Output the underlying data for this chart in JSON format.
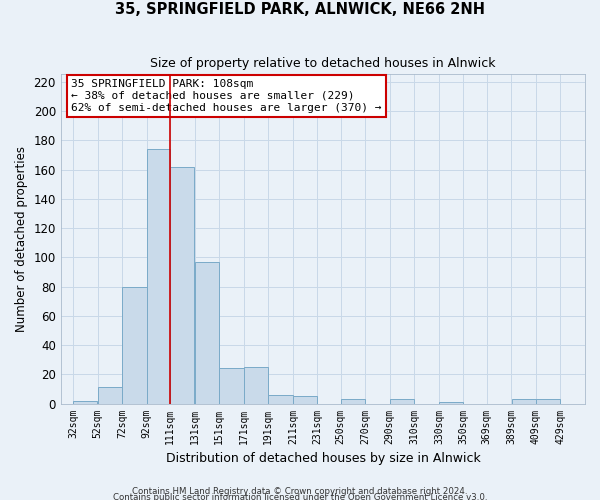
{
  "title": "35, SPRINGFIELD PARK, ALNWICK, NE66 2NH",
  "subtitle": "Size of property relative to detached houses in Alnwick",
  "xlabel": "Distribution of detached houses by size in Alnwick",
  "ylabel": "Number of detached properties",
  "bar_left_edges": [
    32,
    52,
    72,
    92,
    111,
    131,
    151,
    171,
    191,
    211,
    231,
    250,
    270,
    290,
    310,
    330,
    350,
    369,
    389,
    409
  ],
  "bar_widths": [
    20,
    20,
    20,
    19,
    20,
    20,
    20,
    20,
    20,
    20,
    19,
    20,
    20,
    20,
    20,
    20,
    19,
    20,
    20,
    20
  ],
  "bar_heights": [
    2,
    11,
    80,
    174,
    162,
    97,
    24,
    25,
    6,
    5,
    0,
    3,
    0,
    3,
    0,
    1,
    0,
    0,
    3,
    3
  ],
  "bar_color": "#c9daea",
  "bar_edge_color": "#7aaac8",
  "x_tick_labels": [
    "32sqm",
    "52sqm",
    "72sqm",
    "92sqm",
    "111sqm",
    "131sqm",
    "151sqm",
    "171sqm",
    "191sqm",
    "211sqm",
    "231sqm",
    "250sqm",
    "270sqm",
    "290sqm",
    "310sqm",
    "330sqm",
    "350sqm",
    "369sqm",
    "389sqm",
    "409sqm",
    "429sqm"
  ],
  "x_tick_positions": [
    32,
    52,
    72,
    92,
    111,
    131,
    151,
    171,
    191,
    211,
    231,
    250,
    270,
    290,
    310,
    330,
    350,
    369,
    389,
    409,
    429
  ],
  "ylim": [
    0,
    225
  ],
  "yticks": [
    0,
    20,
    40,
    60,
    80,
    100,
    120,
    140,
    160,
    180,
    200,
    220
  ],
  "vline_x": 111,
  "vline_color": "#cc0000",
  "annotation_line1": "35 SPRINGFIELD PARK: 108sqm",
  "annotation_line2": "← 38% of detached houses are smaller (229)",
  "annotation_line3": "62% of semi-detached houses are larger (370) →",
  "annotation_box_color": "#ffffff",
  "annotation_box_edgecolor": "#cc0000",
  "grid_color": "#c8d8e8",
  "bg_color": "#eaf1f8",
  "footer1": "Contains HM Land Registry data © Crown copyright and database right 2024.",
  "footer2": "Contains public sector information licensed under the Open Government Licence v3.0."
}
